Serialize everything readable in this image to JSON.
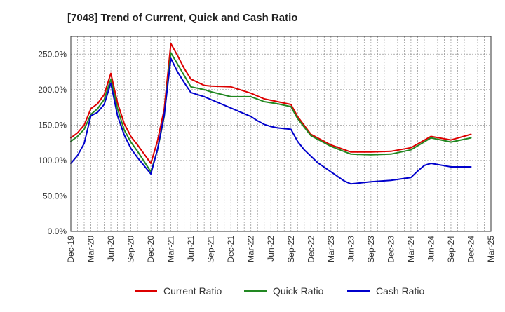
{
  "chart_data": {
    "type": "line",
    "title": "[7048]  Trend of Current, Quick and Cash Ratio",
    "xlabel": "",
    "ylabel": "",
    "ylim": [
      0,
      275
    ],
    "y_ticks": [
      0,
      50,
      100,
      150,
      200,
      250
    ],
    "y_tick_labels": [
      "0.0%",
      "50.0%",
      "100.0%",
      "150.0%",
      "200.0%",
      "250.0%"
    ],
    "x_tick_labels": [
      "Dec-19",
      "Mar-20",
      "Jun-20",
      "Sep-20",
      "Dec-20",
      "Mar-21",
      "Jun-21",
      "Sep-21",
      "Dec-21",
      "Mar-22",
      "Jun-22",
      "Sep-22",
      "Dec-22",
      "Mar-23",
      "Jun-23",
      "Sep-23",
      "Dec-23",
      "Mar-24",
      "Jun-24",
      "Sep-24",
      "Dec-24",
      "Mar-25"
    ],
    "x_tick_months": [
      0,
      3,
      6,
      9,
      12,
      15,
      18,
      21,
      24,
      27,
      30,
      33,
      36,
      39,
      42,
      45,
      48,
      51,
      54,
      57,
      60,
      63
    ],
    "x_range_months": [
      0,
      63
    ],
    "grid": true,
    "legend_position": "bottom",
    "series": [
      {
        "name": "Current Ratio",
        "color": "#dd0000",
        "x": [
          0,
          1,
          2,
          3,
          4,
          5,
          6,
          7,
          8,
          9,
          10,
          12,
          13,
          14,
          15,
          16,
          17,
          18,
          20,
          21,
          24,
          27,
          29,
          31,
          33,
          34,
          36,
          39,
          42,
          45,
          48,
          51,
          54,
          57,
          60
        ],
        "values": [
          132,
          139,
          150,
          173,
          180,
          193,
          223,
          181,
          152,
          134,
          122,
          96,
          128,
          172,
          265,
          248,
          230,
          215,
          206,
          205,
          204,
          195,
          187,
          183,
          179,
          162,
          137,
          122,
          112,
          112,
          113,
          118,
          134,
          129,
          137
        ]
      },
      {
        "name": "Quick Ratio",
        "color": "#228822",
        "x": [
          0,
          1,
          2,
          3,
          4,
          5,
          6,
          7,
          8,
          9,
          10,
          12,
          13,
          14,
          15,
          16,
          17,
          18,
          20,
          21,
          24,
          27,
          29,
          31,
          33,
          34,
          36,
          39,
          42,
          45,
          48,
          51,
          54,
          57,
          60
        ],
        "values": [
          127,
          134,
          144,
          165,
          173,
          186,
          215,
          173,
          143,
          126,
          113,
          84,
          115,
          162,
          252,
          236,
          220,
          204,
          200,
          197,
          190,
          190,
          183,
          180,
          176,
          159,
          135,
          120,
          109,
          108,
          109,
          115,
          132,
          126,
          132
        ]
      },
      {
        "name": "Cash Ratio",
        "color": "#0000cc",
        "x": [
          0,
          1,
          2,
          3,
          4,
          5,
          6,
          7,
          8,
          9,
          10,
          12,
          13,
          14,
          15,
          16,
          17,
          18,
          20,
          21,
          24,
          27,
          28,
          29,
          30,
          31,
          33,
          34,
          35,
          37,
          39,
          41,
          42,
          44,
          45,
          48,
          51,
          52,
          53,
          54,
          57,
          60
        ],
        "values": [
          96,
          107,
          124,
          163,
          168,
          179,
          209,
          163,
          136,
          117,
          104,
          81,
          116,
          164,
          244,
          225,
          210,
          196,
          190,
          186,
          174,
          162,
          156,
          151,
          148,
          146,
          144,
          127,
          115,
          97,
          84,
          71,
          67,
          69,
          70,
          72,
          76,
          85,
          93,
          96,
          91,
          91
        ]
      }
    ]
  }
}
